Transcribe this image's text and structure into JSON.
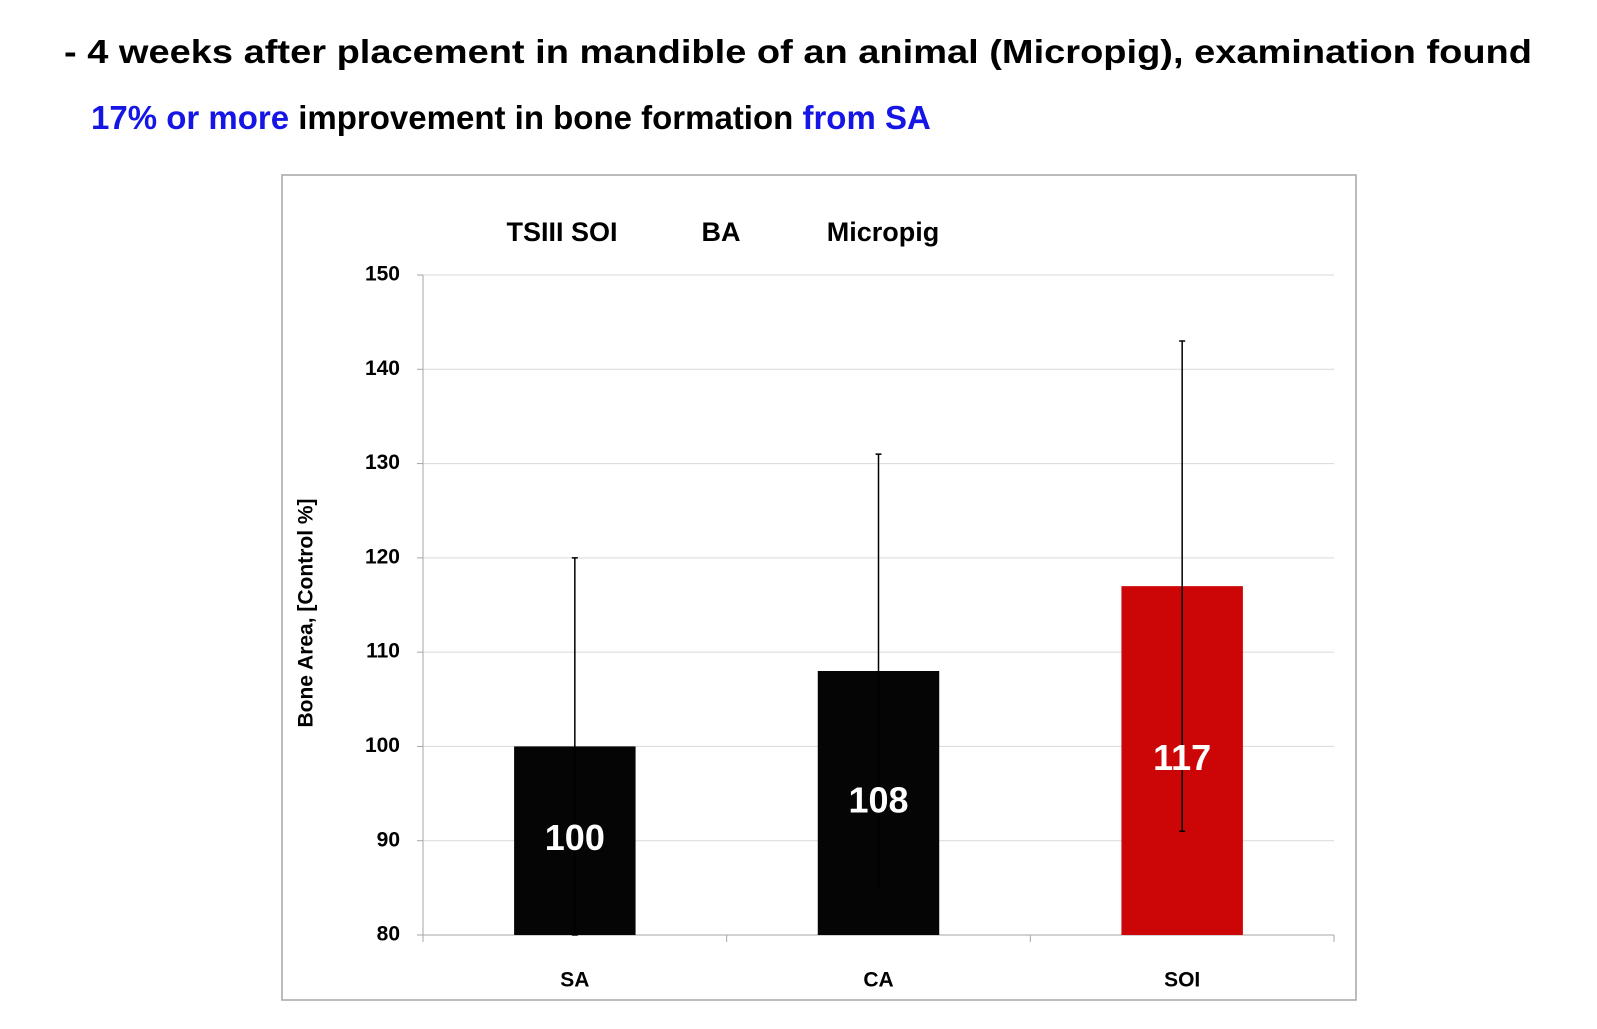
{
  "header": {
    "lines": [
      [
        {
          "text": "- 4 weeks after placement in mandible of an animal (Micropig), examination found",
          "color": "#000000"
        }
      ],
      [
        {
          "text": "17% or more",
          "color": "#1515e6"
        },
        {
          "text": " improvement in bone formation ",
          "color": "#000000"
        },
        {
          "text": "from SA",
          "color": "#1515e6"
        }
      ]
    ]
  },
  "chart_data": {
    "type": "bar",
    "annotations": [
      "TSIII SOI",
      "BA",
      "Micropig"
    ],
    "y_label": "Bone Area, [Control %]",
    "categories": [
      "SA",
      "CA",
      "SOI"
    ],
    "values": [
      100,
      108,
      117
    ],
    "errors": [
      20,
      23,
      26
    ],
    "colors": [
      "#050505",
      "#050505",
      "#cc0606"
    ],
    "ylim": [
      80,
      150
    ],
    "yticks": [
      80,
      90,
      100,
      110,
      120,
      130,
      140,
      150
    ],
    "grid": true
  }
}
